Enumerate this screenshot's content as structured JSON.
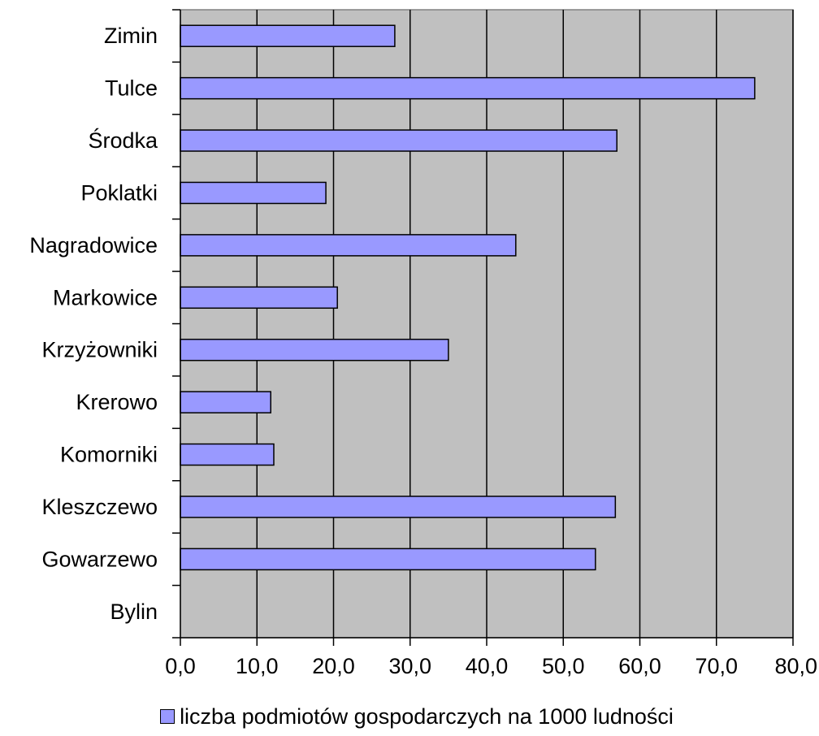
{
  "chart_data": {
    "type": "bar",
    "orientation": "horizontal",
    "categories": [
      "Zimin",
      "Tulce",
      "Środka",
      "Poklatki",
      "Nagradowice",
      "Markowice",
      "Krzyżowniki",
      "Krerowo",
      "Komorniki",
      "Kleszczewo",
      "Gowarzewo",
      "Bylin"
    ],
    "series": [
      {
        "name": "liczba podmiotów gospodarczych na 1000 ludności",
        "values": [
          28.0,
          75.0,
          57.0,
          19.0,
          43.8,
          20.5,
          35.0,
          11.8,
          12.2,
          56.8,
          54.2,
          0.0
        ]
      }
    ],
    "xlim": [
      0,
      80
    ],
    "xticks": [
      "0,0",
      "10,0",
      "20,0",
      "30,0",
      "40,0",
      "50,0",
      "60,0",
      "70,0",
      "80,0"
    ],
    "xgrid": true,
    "legend_position": "bottom",
    "colors": {
      "bar": "#9999ff",
      "plot_bg": "#c0c0c0",
      "grid": "#000000",
      "outline": "#000000"
    }
  }
}
